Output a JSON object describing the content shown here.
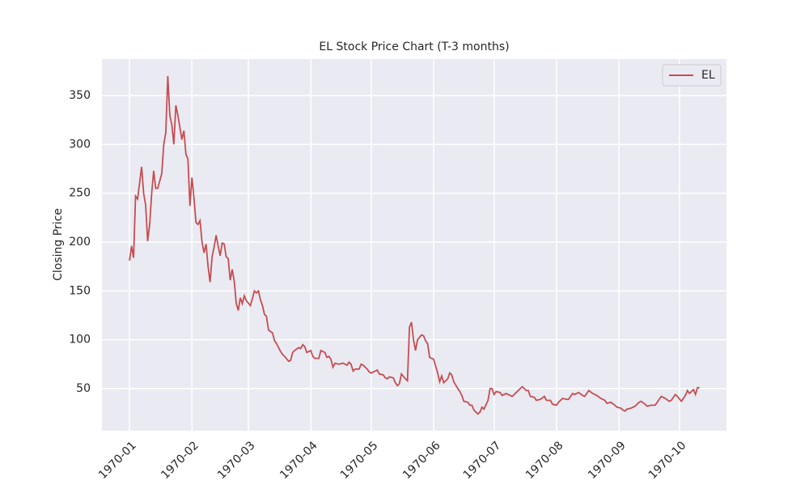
{
  "chart_data": {
    "type": "line",
    "title": "EL Stock Price Chart (T-3 months)",
    "y_label": "Closing Price",
    "x": [
      0,
      1,
      2,
      3,
      4,
      6,
      7,
      8,
      9,
      10,
      11,
      12,
      13,
      14,
      16,
      17,
      18,
      19,
      20,
      21,
      22,
      23,
      24,
      26,
      27,
      28,
      29,
      30,
      31,
      32,
      33,
      34,
      35,
      36,
      37,
      38,
      39,
      40,
      41,
      42,
      43,
      44,
      45,
      46,
      47,
      48,
      49,
      50,
      51,
      52,
      53,
      54,
      55,
      56,
      57,
      58,
      60,
      61,
      62,
      63,
      64,
      65,
      66,
      67,
      68,
      69,
      71,
      72,
      73,
      75,
      76,
      77,
      79,
      80,
      81,
      82,
      84,
      85,
      86,
      87,
      88,
      90,
      91,
      92,
      94,
      95,
      97,
      98,
      99,
      100,
      101,
      102,
      104,
      106,
      108,
      109,
      110,
      111,
      112,
      114,
      115,
      116,
      118,
      119,
      120,
      122,
      123,
      124,
      126,
      127,
      128,
      129,
      131,
      132,
      133,
      134,
      135,
      137,
      138,
      139,
      140,
      141,
      142,
      143,
      145,
      146,
      147,
      148,
      149,
      151,
      152,
      153,
      154,
      155,
      156,
      158,
      159,
      160,
      161,
      163,
      164,
      165,
      166,
      168,
      169,
      170,
      171,
      173,
      174,
      175,
      176,
      178,
      179,
      180,
      181,
      182,
      184,
      185,
      187,
      189,
      190,
      192,
      193,
      195,
      197,
      198,
      199,
      201,
      202,
      204,
      206,
      207,
      209,
      210,
      212,
      213,
      215,
      217,
      218,
      220,
      221,
      223,
      225,
      226,
      228,
      230,
      232,
      234,
      236,
      237,
      239,
      241,
      242,
      244,
      245,
      246,
      247,
      249,
      251,
      253,
      254,
      256,
      257,
      259,
      261,
      263,
      264,
      266,
      268,
      269,
      271,
      272,
      274,
      276,
      277,
      278,
      280,
      281,
      282,
      283
    ],
    "series": [
      {
        "name": "EL",
        "color": "#c44e52",
        "values": [
          181,
          196,
          184,
          247,
          244,
          277,
          250,
          238,
          201,
          218,
          250,
          273,
          255,
          255,
          270,
          300,
          312,
          370,
          330,
          320,
          300,
          340,
          330,
          305,
          314,
          290,
          285,
          237,
          266,
          245,
          220,
          218,
          222,
          200,
          189,
          198,
          175,
          159,
          185,
          195,
          207,
          196,
          186,
          199,
          198,
          185,
          183,
          161,
          172,
          160,
          137,
          130,
          143,
          137,
          145,
          140,
          135,
          142,
          150,
          148,
          150,
          141,
          135,
          126,
          124,
          110,
          107,
          99,
          96,
          88,
          85,
          83,
          78,
          79,
          87,
          89,
          92,
          91,
          95,
          93,
          87,
          89,
          83,
          81,
          81,
          89,
          87,
          82,
          83,
          80,
          72,
          76,
          75,
          76,
          74,
          77,
          75,
          68,
          70,
          70,
          75,
          74,
          70,
          67,
          66,
          68,
          69,
          65,
          64,
          61,
          60,
          62,
          61,
          56,
          53,
          55,
          65,
          60,
          58,
          113,
          118,
          100,
          89,
          100,
          105,
          104,
          99,
          96,
          82,
          80,
          73,
          66,
          57,
          63,
          56,
          60,
          66,
          64,
          57,
          50,
          47,
          43,
          37,
          36,
          33,
          33,
          28,
          24,
          26,
          31,
          29,
          38,
          50,
          50,
          44,
          47,
          46,
          43,
          45,
          43,
          42,
          46,
          48,
          52,
          48,
          48,
          42,
          41,
          38,
          39,
          42,
          38,
          38,
          34,
          33,
          36,
          40,
          39,
          39,
          45,
          44,
          46,
          43,
          42,
          48,
          45,
          43,
          40,
          38,
          35,
          36,
          33,
          31,
          30,
          28,
          27,
          29,
          30,
          32,
          36,
          37,
          34,
          32,
          33,
          33,
          39,
          42,
          40,
          37,
          38,
          44,
          42,
          37,
          43,
          48,
          45,
          49,
          44,
          51,
          51
        ]
      }
    ],
    "xlim": [
      -13.7,
      296.4
    ],
    "xticks": [
      {
        "value": 0,
        "label": "1970-01"
      },
      {
        "value": 31,
        "label": "1970-02"
      },
      {
        "value": 59,
        "label": "1970-03"
      },
      {
        "value": 90,
        "label": "1970-04"
      },
      {
        "value": 120,
        "label": "1970-05"
      },
      {
        "value": 151,
        "label": "1970-06"
      },
      {
        "value": 181,
        "label": "1970-07"
      },
      {
        "value": 212,
        "label": "1970-08"
      },
      {
        "value": 243,
        "label": "1970-09"
      },
      {
        "value": 273,
        "label": "1970-10"
      }
    ],
    "ylim": [
      6.9,
      387.3
    ],
    "yticks": [
      50,
      100,
      150,
      200,
      250,
      300,
      350
    ],
    "grid": true,
    "legend": "upper right"
  }
}
